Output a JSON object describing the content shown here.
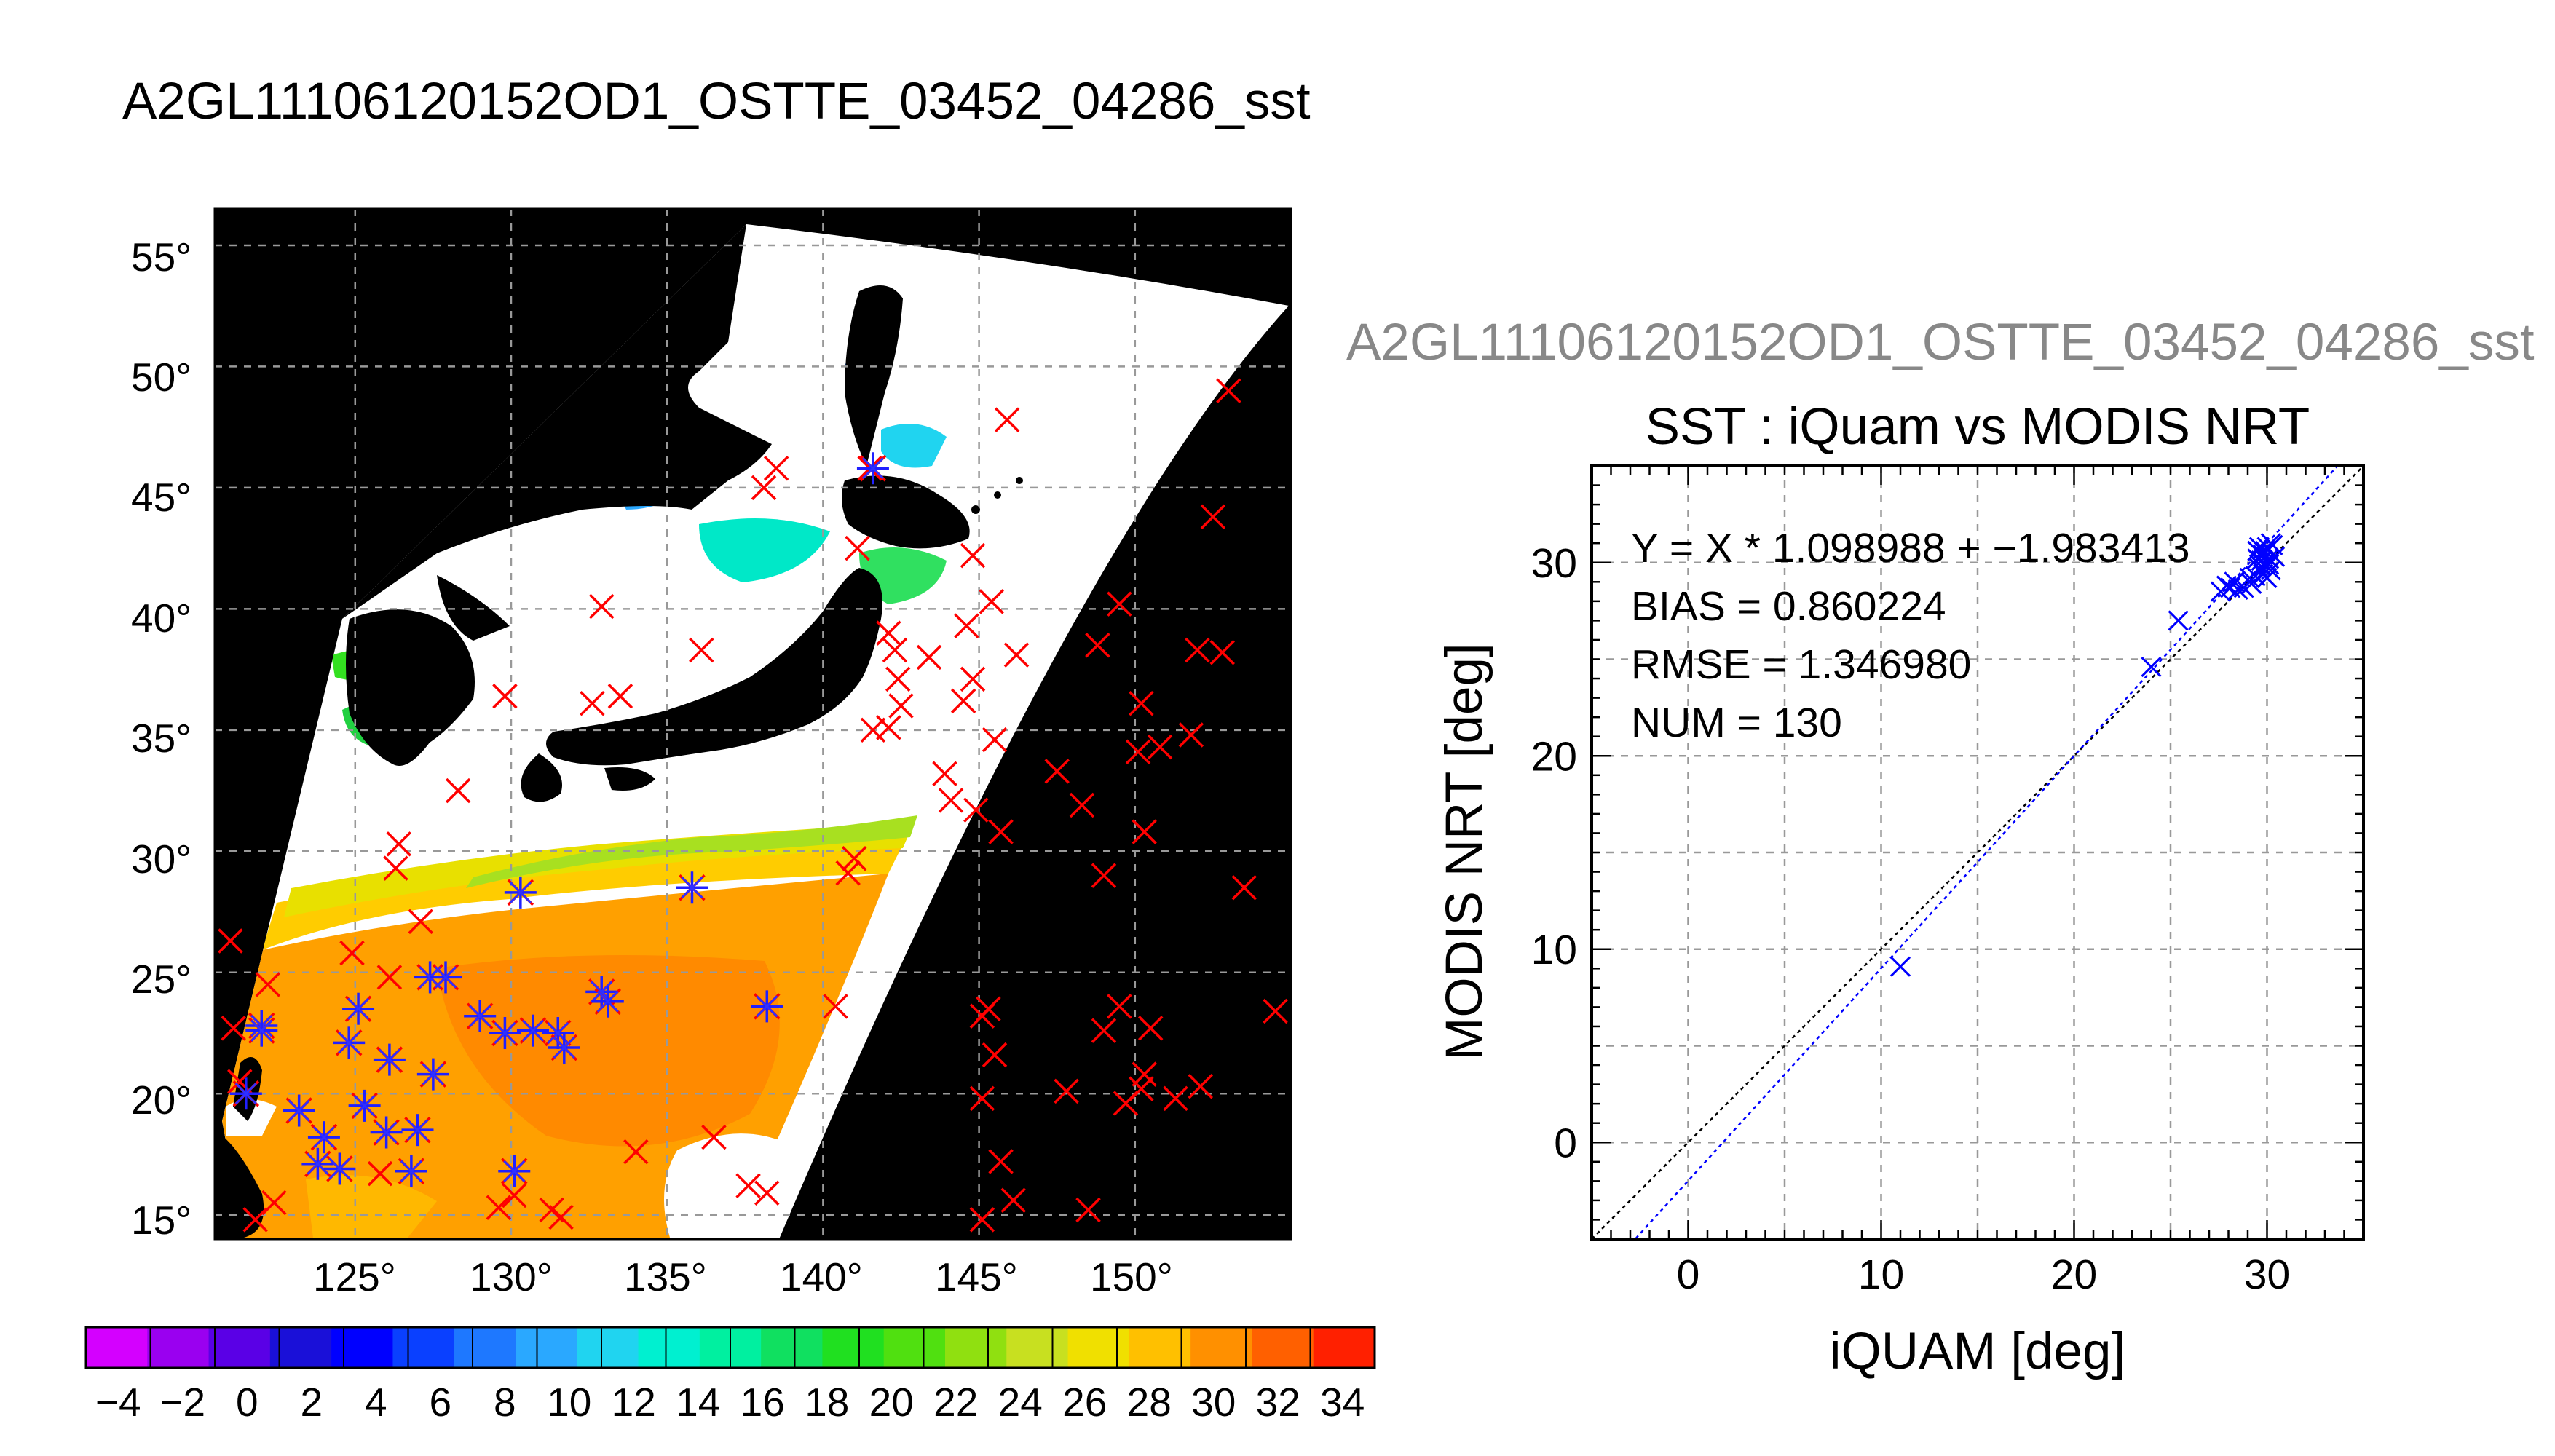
{
  "figure": {
    "title": "A2GL11106120152OD1_OSTTE_03452_04286_sst",
    "title_color": "#000000"
  },
  "map": {
    "lat_ticks": [
      "55°",
      "50°",
      "45°",
      "40°",
      "35°",
      "30°",
      "25°",
      "20°",
      "15°"
    ],
    "lon_ticks": [
      "125°",
      "130°",
      "135°",
      "140°",
      "145°",
      "150°"
    ],
    "colorbar_ticks": [
      "−4",
      "−2",
      "0",
      "2",
      "4",
      "6",
      "8",
      "10",
      "12",
      "14",
      "16",
      "18",
      "20",
      "22",
      "24",
      "26",
      "28",
      "30",
      "32",
      "34"
    ]
  },
  "chart_data": [
    {
      "type": "heatmap",
      "title": "A2GL11106120152OD1_OSTTE_03452_04286_sst",
      "x_range": [
        120.5,
        155
      ],
      "y_range": [
        14,
        56.5
      ],
      "x_ticks": [
        125,
        130,
        135,
        140,
        145,
        150
      ],
      "y_ticks": [
        15,
        20,
        25,
        30,
        35,
        40,
        45,
        50,
        55
      ],
      "colorbar": {
        "range": [
          -5,
          35
        ],
        "ticks": [
          -4,
          -2,
          0,
          2,
          4,
          6,
          8,
          10,
          12,
          14,
          16,
          18,
          20,
          22,
          24,
          26,
          28,
          30,
          32,
          34
        ],
        "colors": [
          "#d400ff",
          "#9a00f0",
          "#5a00e6",
          "#1a10d8",
          "#0000ff",
          "#0a40ff",
          "#1e78ff",
          "#2aa8ff",
          "#20d4f0",
          "#00f0d0",
          "#00f0a0",
          "#10e060",
          "#20e020",
          "#50e010",
          "#90e010",
          "#c8e020",
          "#f0e000",
          "#ffc000",
          "#ff9000",
          "#ff6000",
          "#ff2000"
        ]
      },
      "grid": true,
      "matched_points_lonlat": [
        [
          122,
          22.8
        ],
        [
          122,
          22.6
        ],
        [
          121.5,
          20
        ],
        [
          123.2,
          19.3
        ],
        [
          124,
          18.2
        ],
        [
          123.8,
          17.1
        ],
        [
          124.5,
          16.9
        ],
        [
          124.8,
          22.1
        ],
        [
          125.1,
          23.5
        ],
        [
          126.1,
          21.4
        ],
        [
          125.3,
          19.5
        ],
        [
          126,
          18.4
        ],
        [
          126.8,
          16.8
        ],
        [
          127,
          18.5
        ],
        [
          127.5,
          20.8
        ],
        [
          127.4,
          24.8
        ],
        [
          127.9,
          24.8
        ],
        [
          129,
          23.2
        ],
        [
          130.1,
          16.8
        ],
        [
          129.8,
          22.5
        ],
        [
          130.7,
          22.6
        ],
        [
          131.5,
          22.5
        ],
        [
          131.7,
          21.9
        ],
        [
          132.9,
          24.2
        ],
        [
          133.1,
          23.8
        ],
        [
          138.2,
          23.6
        ],
        [
          130.3,
          28.3
        ],
        [
          135.8,
          28.5
        ],
        [
          141.6,
          45.8
        ]
      ],
      "in_situ_points_lonlat": [
        [
          121,
          26.3
        ],
        [
          122.2,
          24.5
        ],
        [
          121.1,
          22.7
        ],
        [
          121.3,
          20.5
        ],
        [
          121.8,
          14.8
        ],
        [
          122.4,
          15.5
        ],
        [
          124.9,
          25.8
        ],
        [
          126.3,
          29.3
        ],
        [
          126.4,
          30.3
        ],
        [
          126.1,
          24.8
        ],
        [
          127.1,
          27.1
        ],
        [
          125.8,
          16.7
        ],
        [
          129.6,
          15.3
        ],
        [
          130.1,
          15.8
        ],
        [
          131.3,
          15.2
        ],
        [
          131.6,
          14.9
        ],
        [
          134,
          17.6
        ],
        [
          137.6,
          16.2
        ],
        [
          138.2,
          15.9
        ],
        [
          136.5,
          18.2
        ],
        [
          140.4,
          23.6
        ],
        [
          140.8,
          29.1
        ],
        [
          141,
          29.7
        ],
        [
          128.3,
          32.5
        ],
        [
          129.8,
          36.4
        ],
        [
          132.6,
          36.1
        ],
        [
          133.5,
          36.4
        ],
        [
          132.9,
          40.1
        ],
        [
          136.1,
          38.3
        ],
        [
          138.5,
          45.8
        ],
        [
          138.1,
          45
        ],
        [
          141.5,
          45.8
        ],
        [
          141.1,
          42.5
        ],
        [
          142.1,
          39
        ],
        [
          142.4,
          37.1
        ],
        [
          141.6,
          35
        ],
        [
          142.1,
          35.1
        ],
        [
          142.5,
          36
        ],
        [
          142.3,
          38.3
        ],
        [
          143.4,
          38
        ],
        [
          144.6,
          39.3
        ],
        [
          145.4,
          40.3
        ],
        [
          146.2,
          38.1
        ],
        [
          144.5,
          36.2
        ],
        [
          144.8,
          37.1
        ],
        [
          145.5,
          34.6
        ],
        [
          144.9,
          31.7
        ],
        [
          145.7,
          30.8
        ],
        [
          143.9,
          33.2
        ],
        [
          144.1,
          32.1
        ],
        [
          144.8,
          42.2
        ],
        [
          145.9,
          47.8
        ],
        [
          147.5,
          33.3
        ],
        [
          148.3,
          31.9
        ],
        [
          149,
          29
        ],
        [
          149.5,
          40.2
        ],
        [
          148.8,
          38.5
        ],
        [
          150.1,
          34.1
        ],
        [
          150.2,
          36.1
        ],
        [
          150.8,
          34.3
        ],
        [
          151.8,
          34.8
        ],
        [
          152,
          38.3
        ],
        [
          152.8,
          38.2
        ],
        [
          152.5,
          43.8
        ],
        [
          153,
          49
        ],
        [
          153.5,
          28.5
        ],
        [
          150.3,
          30.8
        ],
        [
          145.1,
          23.2
        ],
        [
          145.3,
          23.5
        ],
        [
          145.5,
          21.6
        ],
        [
          145.1,
          19.8
        ],
        [
          145.7,
          17.2
        ],
        [
          146.1,
          15.6
        ],
        [
          145.1,
          14.8
        ],
        [
          147.8,
          20.1
        ],
        [
          149,
          22.6
        ],
        [
          149.5,
          23.6
        ],
        [
          150.5,
          22.7
        ],
        [
          150.3,
          20.8
        ],
        [
          150.2,
          20.2
        ],
        [
          151.3,
          19.8
        ],
        [
          152.1,
          20.3
        ],
        [
          154.5,
          23.4
        ],
        [
          148.5,
          15.2
        ],
        [
          149.7,
          19.6
        ]
      ]
    },
    {
      "type": "scatter",
      "title": "SST : iQuam vs MODIS NRT",
      "subtitle": "A2GL11106120152OD1_OSTTE_03452_04286_sst",
      "xlabel": "iQUAM [deg]",
      "ylabel": "MODIS NRT [deg]",
      "xlim": [
        -5,
        35
      ],
      "ylim": [
        -5,
        35
      ],
      "x_ticks": [
        0,
        10,
        20,
        30
      ],
      "y_ticks": [
        0,
        10,
        20,
        30
      ],
      "grid": true,
      "fit": {
        "slope": 1.098988,
        "intercept": -1.983413
      },
      "annotations": [
        "Y = X * 1.098988 + −1.983413",
        "BIAS = 0.860224",
        "RMSE = 1.346980",
        "NUM = 130"
      ],
      "points": [
        [
          11,
          9.1
        ],
        [
          24,
          24.6
        ],
        [
          25.4,
          27
        ],
        [
          27.6,
          28.5
        ],
        [
          27.9,
          28.8
        ],
        [
          28.1,
          28.7
        ],
        [
          28.3,
          29
        ],
        [
          28.5,
          28.6
        ],
        [
          28.8,
          28.7
        ],
        [
          29.1,
          29.2
        ],
        [
          29.2,
          28.9
        ],
        [
          29.4,
          29.3
        ],
        [
          29.5,
          30.6
        ],
        [
          29.6,
          29.7
        ],
        [
          29.7,
          30.1
        ],
        [
          29.8,
          30.4
        ],
        [
          29.9,
          29.9
        ],
        [
          30,
          30.8
        ],
        [
          30.1,
          30.2
        ],
        [
          30.2,
          29.6
        ],
        [
          30.3,
          30.9
        ],
        [
          29.6,
          30.8
        ],
        [
          29.8,
          29.4
        ],
        [
          30,
          29.2
        ],
        [
          30.4,
          30.3
        ],
        [
          29.5,
          30.2
        ],
        [
          29.9,
          30.6
        ],
        [
          30.2,
          31
        ],
        [
          29.7,
          29.8
        ],
        [
          30.1,
          29.9
        ]
      ]
    }
  ]
}
